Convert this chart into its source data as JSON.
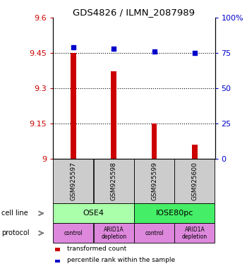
{
  "title": "GDS4826 / ILMN_2087989",
  "samples": [
    "GSM925597",
    "GSM925598",
    "GSM925599",
    "GSM925600"
  ],
  "bar_values": [
    9.45,
    9.37,
    9.15,
    9.06
  ],
  "bar_base": 9.0,
  "dot_values": [
    79,
    78,
    76,
    75
  ],
  "ylim_left": [
    9.0,
    9.6
  ],
  "ylim_right": [
    0,
    100
  ],
  "yticks_left": [
    9.0,
    9.15,
    9.3,
    9.45,
    9.6
  ],
  "yticks_right": [
    0,
    25,
    50,
    75,
    100
  ],
  "ytick_labels_left": [
    "9",
    "9.15",
    "9.3",
    "9.45",
    "9.6"
  ],
  "ytick_labels_right": [
    "0",
    "25",
    "50",
    "75",
    "100%"
  ],
  "hlines": [
    9.15,
    9.3,
    9.45
  ],
  "cell_line_labels": [
    "OSE4",
    "IOSE80pc"
  ],
  "cell_line_spans": [
    [
      0,
      2
    ],
    [
      2,
      4
    ]
  ],
  "cell_line_colors": [
    "#aaffaa",
    "#44ee66"
  ],
  "protocol_labels": [
    "control",
    "ARID1A\ndepletion",
    "control",
    "ARID1A\ndepletion"
  ],
  "protocol_color": "#dd88dd",
  "bar_color": "#cc0000",
  "dot_color": "#0000cc",
  "sample_box_color": "#cccccc",
  "legend_red_label": "transformed count",
  "legend_blue_label": "percentile rank within the sample",
  "left_tick_color": "#cc0000",
  "right_tick_color": "#0000cc"
}
